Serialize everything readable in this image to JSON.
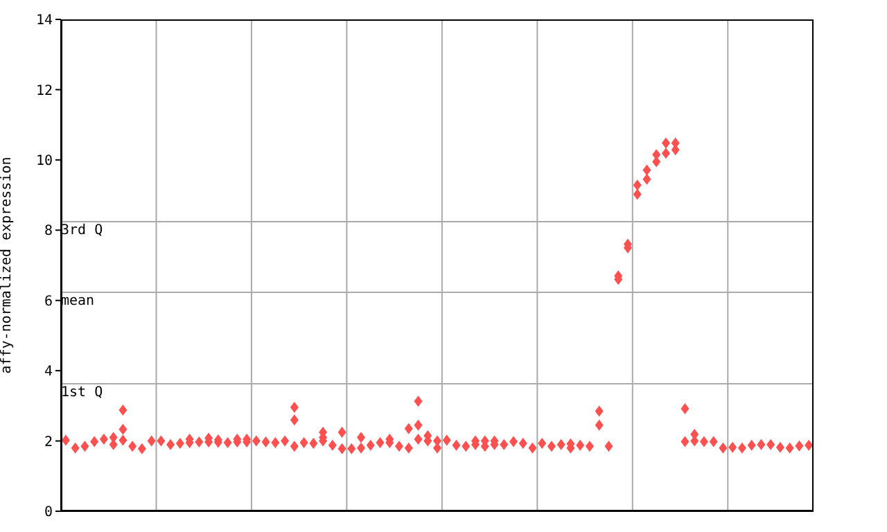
{
  "chart_data": {
    "type": "scatter",
    "ylabel": "affy-normalized expression",
    "categories": [
      null,
      null,
      null,
      null,
      null,
      null,
      null,
      null,
      null,
      null,
      null,
      null,
      null,
      null,
      null,
      null,
      null,
      null,
      null,
      null,
      null,
      null,
      null,
      null,
      null,
      null,
      null,
      null,
      null,
      null,
      null,
      null,
      null,
      null,
      null,
      null,
      null,
      null,
      null,
      null,
      null,
      null,
      null,
      null,
      null,
      null,
      null,
      null,
      null,
      null,
      null,
      null,
      null,
      null,
      null,
      null,
      null,
      null,
      null,
      null,
      null,
      null,
      null,
      null,
      null,
      null,
      null,
      null,
      null,
      null,
      null,
      null,
      null,
      null,
      null,
      null,
      null,
      null,
      null
    ],
    "series": [
      {
        "color": "#ff5050",
        "values": [
          2.02,
          1.8,
          1.85,
          1.98,
          2.05,
          2.1,
          2.88,
          1.85,
          1.78,
          2.0,
          2.0,
          1.9,
          1.93,
          2.05,
          1.97,
          2.08,
          2.03,
          1.95,
          2.05,
          2.05,
          2.0,
          1.97,
          1.95,
          2.0,
          2.96,
          1.95,
          1.93,
          2.25,
          1.88,
          2.25,
          1.78,
          2.1,
          1.88,
          1.95,
          2.05,
          1.85,
          2.35,
          3.13,
          2.15,
          2.0,
          2.02,
          1.88,
          1.85,
          2.0,
          2.0,
          2.0,
          1.9,
          1.98,
          1.93,
          1.8,
          1.93,
          1.85,
          1.9,
          1.92,
          1.88,
          1.85,
          2.85,
          1.85,
          6.7,
          7.6,
          9.28,
          9.71,
          10.15,
          10.48,
          10.48,
          2.92,
          2.19,
          1.98,
          1.98,
          1.8,
          1.82,
          1.8,
          1.88,
          1.9,
          1.9,
          1.82,
          1.8,
          1.86,
          1.88
        ]
      },
      {
        "color": "#ff5050",
        "values": [
          null,
          null,
          null,
          null,
          null,
          1.9,
          2.33,
          null,
          null,
          null,
          null,
          null,
          null,
          1.95,
          null,
          1.97,
          1.96,
          null,
          1.97,
          1.97,
          null,
          null,
          null,
          null,
          2.6,
          null,
          null,
          2.1,
          null,
          1.78,
          null,
          1.8,
          null,
          null,
          1.95,
          null,
          1.8,
          2.45,
          2.0,
          1.8,
          null,
          null,
          null,
          1.9,
          1.85,
          1.9,
          null,
          null,
          null,
          null,
          null,
          null,
          null,
          1.8,
          null,
          null,
          2.45,
          null,
          6.6,
          7.5,
          9.02,
          9.45,
          9.95,
          10.19,
          10.29,
          1.98,
          2.0,
          null,
          null,
          null,
          null,
          null,
          null,
          null,
          null,
          null,
          null,
          null,
          null
        ]
      },
      {
        "color": "#ff5050",
        "values": [
          null,
          null,
          null,
          null,
          null,
          null,
          2.02,
          null,
          null,
          null,
          null,
          null,
          null,
          null,
          null,
          null,
          null,
          null,
          null,
          null,
          null,
          null,
          null,
          null,
          1.85,
          null,
          null,
          2.0,
          null,
          null,
          null,
          null,
          null,
          null,
          null,
          null,
          null,
          2.05,
          null,
          null,
          null,
          null,
          null,
          null,
          null,
          null,
          null,
          null,
          null,
          null,
          null,
          null,
          null,
          null,
          null,
          null,
          null,
          null,
          null,
          null,
          null,
          null,
          null,
          null,
          null,
          null,
          null,
          null,
          null,
          null,
          null,
          null,
          null,
          null,
          null,
          null,
          null,
          null,
          null
        ]
      }
    ],
    "ylim": [
      0,
      14
    ],
    "yticks": [
      0,
      2,
      4,
      6,
      8,
      10,
      12,
      14
    ],
    "ref_lines": [
      {
        "axis": "y",
        "value": 8.24,
        "label": "3rd Q",
        "color": "#aaaaaa"
      },
      {
        "axis": "y",
        "value": 6.23,
        "label": "mean",
        "color": "#aaaaaa"
      },
      {
        "axis": "y",
        "value": 3.63,
        "label": "1st Q",
        "color": "#aaaaaa"
      }
    ],
    "grid": "x",
    "tick_labels": "y",
    "marker": "diamond"
  }
}
